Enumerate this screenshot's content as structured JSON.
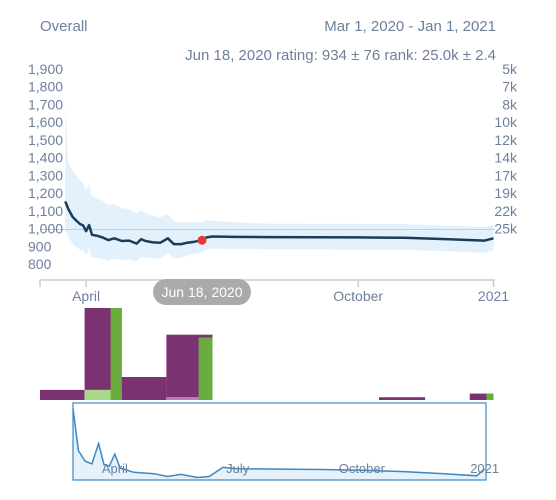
{
  "header": {
    "title": "Overall",
    "date_range": "Mar 1, 2020 - Jan 1, 2021",
    "hover_readout": "Jun 18, 2020 rating: 934 ± 76 rank: 25.0k ± 2.4"
  },
  "tooltip": {
    "label": "Jun 18, 2020"
  },
  "colors": {
    "rating_line": "#1c3d5a",
    "band": "#e3f1fc",
    "marker": "#e53935",
    "bar_purple": "#7b3272",
    "bar_green": "#6aad3e",
    "bar_light_green": "#a8d98a",
    "bar_pink": "#c27bb6",
    "nav_line": "#3b88c4",
    "nav_fill": "#e6f2fb"
  },
  "chart_data": [
    {
      "type": "line",
      "title": "Overall",
      "y_left": {
        "ylim": [
          800,
          1900
        ],
        "ticks": [
          "1,900",
          "1,800",
          "1,700",
          "1,600",
          "1,500",
          "1,400",
          "1,300",
          "1,200",
          "1,100",
          "1,000",
          "900",
          "800"
        ]
      },
      "y_right": {
        "ticks": [
          "5k",
          "7k",
          "8k",
          "10k",
          "12k",
          "14k",
          "17k",
          "19k",
          "22k",
          "25k"
        ]
      },
      "x_ticks": [
        "April",
        "October",
        "2021"
      ],
      "x_range": [
        "2020-03-01",
        "2021-01-01"
      ],
      "series": [
        {
          "points": [
            [
              "2020-03-18",
              1153
            ],
            [
              "2020-03-20",
              1110
            ],
            [
              "2020-03-23",
              1065
            ],
            [
              "2020-03-26",
              1040
            ],
            [
              "2020-03-28",
              1025
            ],
            [
              "2020-03-30",
              1018
            ],
            [
              "2020-04-01",
              985
            ],
            [
              "2020-04-03",
              1020
            ],
            [
              "2020-04-05",
              965
            ],
            [
              "2020-04-08",
              960
            ],
            [
              "2020-04-12",
              950
            ],
            [
              "2020-04-16",
              935
            ],
            [
              "2020-04-20",
              945
            ],
            [
              "2020-04-25",
              930
            ],
            [
              "2020-04-30",
              932
            ],
            [
              "2020-05-05",
              915
            ],
            [
              "2020-05-08",
              940
            ],
            [
              "2020-05-11",
              930
            ],
            [
              "2020-05-16",
              922
            ],
            [
              "2020-05-21",
              920
            ],
            [
              "2020-05-26",
              945
            ],
            [
              "2020-05-30",
              912
            ],
            [
              "2020-06-04",
              912
            ],
            [
              "2020-06-08",
              920
            ],
            [
              "2020-06-13",
              926
            ],
            [
              "2020-06-18",
              934
            ],
            [
              "2020-06-21",
              950
            ],
            [
              "2020-06-25",
              955
            ],
            [
              "2020-07-10",
              953
            ],
            [
              "2020-08-01",
              952
            ],
            [
              "2020-09-01",
              951
            ],
            [
              "2020-10-01",
              950
            ],
            [
              "2020-11-01",
              948
            ],
            [
              "2020-12-01",
              940
            ],
            [
              "2020-12-25",
              932
            ],
            [
              "2020-12-31",
              945
            ]
          ],
          "band": 76
        }
      ],
      "highlight": {
        "date": "2020-06-18",
        "rating": 934,
        "rating_sd": 76,
        "rank": "25.0k",
        "rank_sd": 2.4
      }
    },
    {
      "type": "bar",
      "stacked": true,
      "series_colors": [
        "purple",
        "green",
        "light-green",
        "pink"
      ],
      "bars": [
        {
          "x0": "2020-03-01",
          "x1": "2020-03-31",
          "segments": [
            {
              "color": "purple",
              "value": 0.11
            }
          ]
        },
        {
          "x0": "2020-03-31",
          "x1": "2020-04-25",
          "segments": [
            {
              "color": "light-green",
              "value": 0.11
            },
            {
              "color": "purple",
              "value": 0.89
            }
          ],
          "green_top": 1.0
        },
        {
          "x0": "2020-04-25",
          "x1": "2020-05-25",
          "segments": [
            {
              "color": "purple",
              "value": 0.25
            }
          ]
        },
        {
          "x0": "2020-05-25",
          "x1": "2020-06-25",
          "segments": [
            {
              "color": "pink",
              "value": 0.03
            },
            {
              "color": "purple",
              "value": 0.68
            }
          ],
          "green_top": 0.68
        },
        {
          "x0": "2020-10-15",
          "x1": "2020-11-15",
          "segments": [
            {
              "color": "purple",
              "value": 0.03
            }
          ]
        },
        {
          "x0": "2020-12-15",
          "x1": "2020-12-31",
          "segments": [
            {
              "color": "purple",
              "value": 0.07
            }
          ],
          "green_top": 0.07
        }
      ]
    },
    {
      "type": "area",
      "role": "navigator",
      "x_ticks": [
        "April",
        "July",
        "October",
        "2021"
      ],
      "points": [
        [
          "2020-03-01",
          1900
        ],
        [
          "2020-03-05",
          1300
        ],
        [
          "2020-03-10",
          1150
        ],
        [
          "2020-03-15",
          1110
        ],
        [
          "2020-03-20",
          1400
        ],
        [
          "2020-03-24",
          1100
        ],
        [
          "2020-03-28",
          1080
        ],
        [
          "2020-04-01",
          1250
        ],
        [
          "2020-04-05",
          1050
        ],
        [
          "2020-04-15",
          990
        ],
        [
          "2020-04-30",
          970
        ],
        [
          "2020-05-10",
          930
        ],
        [
          "2020-05-20",
          960
        ],
        [
          "2020-06-01",
          915
        ],
        [
          "2020-06-10",
          930
        ],
        [
          "2020-06-20",
          1060
        ],
        [
          "2020-07-01",
          1040
        ],
        [
          "2020-08-01",
          1035
        ],
        [
          "2020-09-01",
          1030
        ],
        [
          "2020-10-01",
          1020
        ],
        [
          "2020-11-01",
          1000
        ],
        [
          "2020-12-01",
          970
        ],
        [
          "2020-12-25",
          940
        ],
        [
          "2020-12-31",
          1040
        ]
      ]
    }
  ]
}
